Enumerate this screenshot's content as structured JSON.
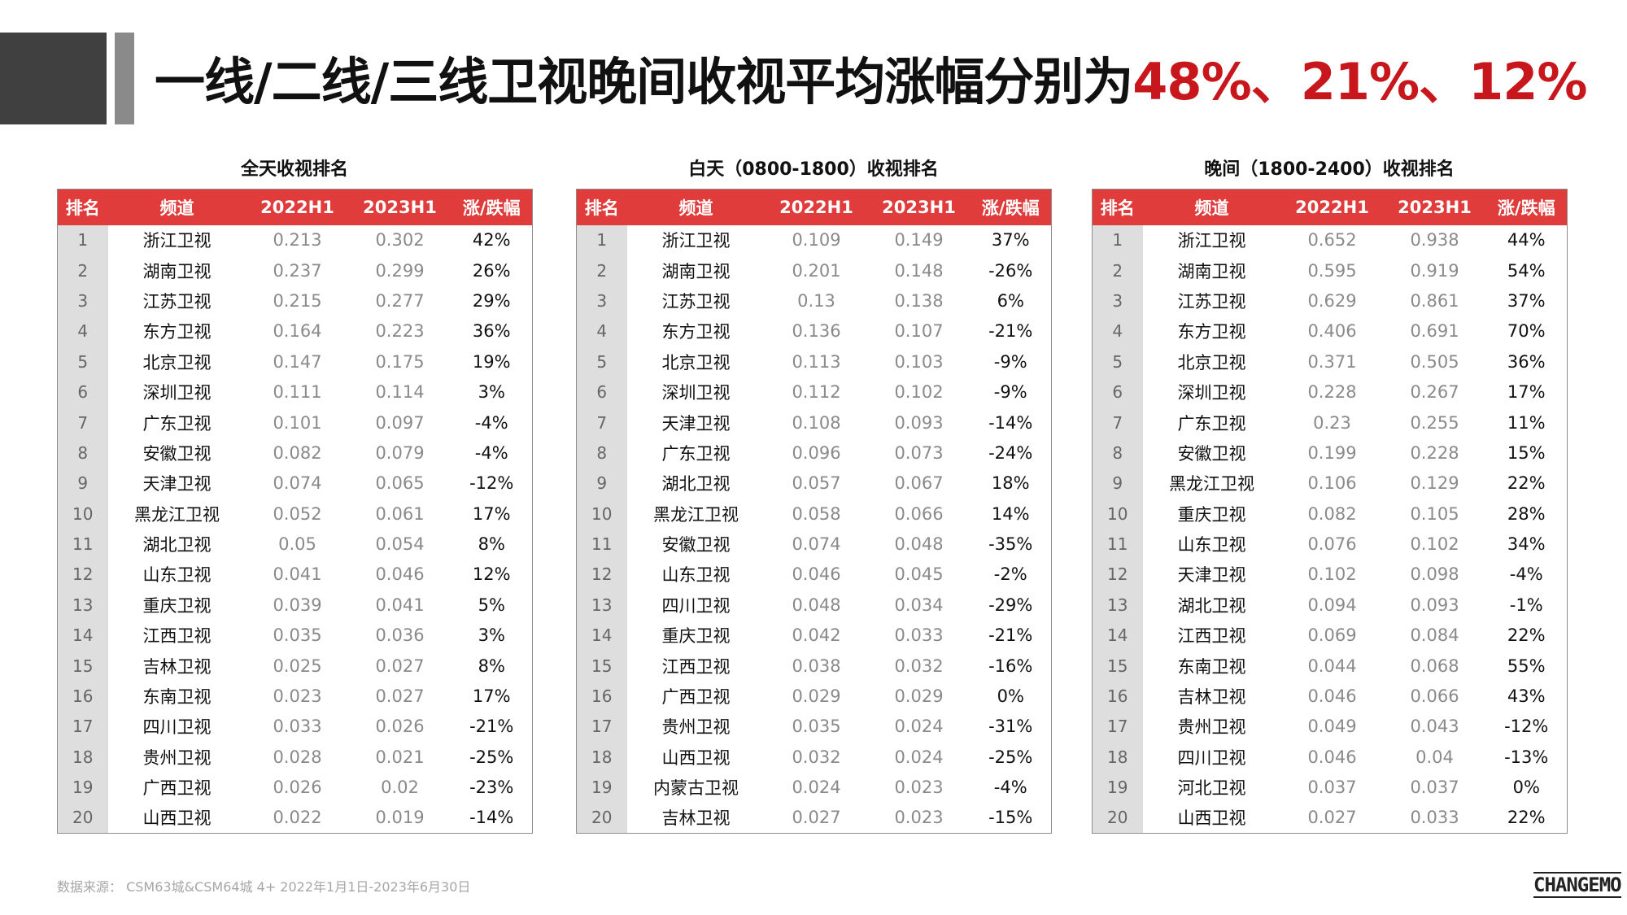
{
  "title": {
    "main": "一线/二线/三线卫视晚间收视平均涨幅分别为",
    "highlight": "48%、21%、12%"
  },
  "headers": {
    "rank": "排名",
    "channel": "频道",
    "y2022": "2022H1",
    "y2023": "2023H1",
    "change": "涨/跌幅"
  },
  "tables": [
    {
      "caption": "全天收视排名",
      "rows": [
        [
          "1",
          "浙江卫视",
          "0.213",
          "0.302",
          "42%"
        ],
        [
          "2",
          "湖南卫视",
          "0.237",
          "0.299",
          "26%"
        ],
        [
          "3",
          "江苏卫视",
          "0.215",
          "0.277",
          "29%"
        ],
        [
          "4",
          "东方卫视",
          "0.164",
          "0.223",
          "36%"
        ],
        [
          "5",
          "北京卫视",
          "0.147",
          "0.175",
          "19%"
        ],
        [
          "6",
          "深圳卫视",
          "0.111",
          "0.114",
          "3%"
        ],
        [
          "7",
          "广东卫视",
          "0.101",
          "0.097",
          "-4%"
        ],
        [
          "8",
          "安徽卫视",
          "0.082",
          "0.079",
          "-4%"
        ],
        [
          "9",
          "天津卫视",
          "0.074",
          "0.065",
          "-12%"
        ],
        [
          "10",
          "黑龙江卫视",
          "0.052",
          "0.061",
          "17%"
        ],
        [
          "11",
          "湖北卫视",
          "0.05",
          "0.054",
          "8%"
        ],
        [
          "12",
          "山东卫视",
          "0.041",
          "0.046",
          "12%"
        ],
        [
          "13",
          "重庆卫视",
          "0.039",
          "0.041",
          "5%"
        ],
        [
          "14",
          "江西卫视",
          "0.035",
          "0.036",
          "3%"
        ],
        [
          "15",
          "吉林卫视",
          "0.025",
          "0.027",
          "8%"
        ],
        [
          "16",
          "东南卫视",
          "0.023",
          "0.027",
          "17%"
        ],
        [
          "17",
          "四川卫视",
          "0.033",
          "0.026",
          "-21%"
        ],
        [
          "18",
          "贵州卫视",
          "0.028",
          "0.021",
          "-25%"
        ],
        [
          "19",
          "广西卫视",
          "0.026",
          "0.02",
          "-23%"
        ],
        [
          "20",
          "山西卫视",
          "0.022",
          "0.019",
          "-14%"
        ]
      ]
    },
    {
      "caption": "白天（0800-1800）收视排名",
      "rows": [
        [
          "1",
          "浙江卫视",
          "0.109",
          "0.149",
          "37%"
        ],
        [
          "2",
          "湖南卫视",
          "0.201",
          "0.148",
          "-26%"
        ],
        [
          "3",
          "江苏卫视",
          "0.13",
          "0.138",
          "6%"
        ],
        [
          "4",
          "东方卫视",
          "0.136",
          "0.107",
          "-21%"
        ],
        [
          "5",
          "北京卫视",
          "0.113",
          "0.103",
          "-9%"
        ],
        [
          "6",
          "深圳卫视",
          "0.112",
          "0.102",
          "-9%"
        ],
        [
          "7",
          "天津卫视",
          "0.108",
          "0.093",
          "-14%"
        ],
        [
          "8",
          "广东卫视",
          "0.096",
          "0.073",
          "-24%"
        ],
        [
          "9",
          "湖北卫视",
          "0.057",
          "0.067",
          "18%"
        ],
        [
          "10",
          "黑龙江卫视",
          "0.058",
          "0.066",
          "14%"
        ],
        [
          "11",
          "安徽卫视",
          "0.074",
          "0.048",
          "-35%"
        ],
        [
          "12",
          "山东卫视",
          "0.046",
          "0.045",
          "-2%"
        ],
        [
          "13",
          "四川卫视",
          "0.048",
          "0.034",
          "-29%"
        ],
        [
          "14",
          "重庆卫视",
          "0.042",
          "0.033",
          "-21%"
        ],
        [
          "15",
          "江西卫视",
          "0.038",
          "0.032",
          "-16%"
        ],
        [
          "16",
          "广西卫视",
          "0.029",
          "0.029",
          "0%"
        ],
        [
          "17",
          "贵州卫视",
          "0.035",
          "0.024",
          "-31%"
        ],
        [
          "18",
          "山西卫视",
          "0.032",
          "0.024",
          "-25%"
        ],
        [
          "19",
          "内蒙古卫视",
          "0.024",
          "0.023",
          "-4%"
        ],
        [
          "20",
          "吉林卫视",
          "0.027",
          "0.023",
          "-15%"
        ]
      ]
    },
    {
      "caption": "晚间（1800-2400）收视排名",
      "rows": [
        [
          "1",
          "浙江卫视",
          "0.652",
          "0.938",
          "44%"
        ],
        [
          "2",
          "湖南卫视",
          "0.595",
          "0.919",
          "54%"
        ],
        [
          "3",
          "江苏卫视",
          "0.629",
          "0.861",
          "37%"
        ],
        [
          "4",
          "东方卫视",
          "0.406",
          "0.691",
          "70%"
        ],
        [
          "5",
          "北京卫视",
          "0.371",
          "0.505",
          "36%"
        ],
        [
          "6",
          "深圳卫视",
          "0.228",
          "0.267",
          "17%"
        ],
        [
          "7",
          "广东卫视",
          "0.23",
          "0.255",
          "11%"
        ],
        [
          "8",
          "安徽卫视",
          "0.199",
          "0.228",
          "15%"
        ],
        [
          "9",
          "黑龙江卫视",
          "0.106",
          "0.129",
          "22%"
        ],
        [
          "10",
          "重庆卫视",
          "0.082",
          "0.105",
          "28%"
        ],
        [
          "11",
          "山东卫视",
          "0.076",
          "0.102",
          "34%"
        ],
        [
          "12",
          "天津卫视",
          "0.102",
          "0.098",
          "-4%"
        ],
        [
          "13",
          "湖北卫视",
          "0.094",
          "0.093",
          "-1%"
        ],
        [
          "14",
          "江西卫视",
          "0.069",
          "0.084",
          "22%"
        ],
        [
          "15",
          "东南卫视",
          "0.044",
          "0.068",
          "55%"
        ],
        [
          "16",
          "吉林卫视",
          "0.046",
          "0.066",
          "43%"
        ],
        [
          "17",
          "贵州卫视",
          "0.049",
          "0.043",
          "-12%"
        ],
        [
          "18",
          "四川卫视",
          "0.046",
          "0.04",
          "-13%"
        ],
        [
          "19",
          "河北卫视",
          "0.037",
          "0.037",
          "0%"
        ],
        [
          "20",
          "山西卫视",
          "0.027",
          "0.033",
          "22%"
        ]
      ]
    }
  ],
  "footer": {
    "source": "数据来源：  CSM63城&CSM64城    4+    2022年1月1日-2023年6月30日",
    "logo": "CHANGEMO"
  }
}
